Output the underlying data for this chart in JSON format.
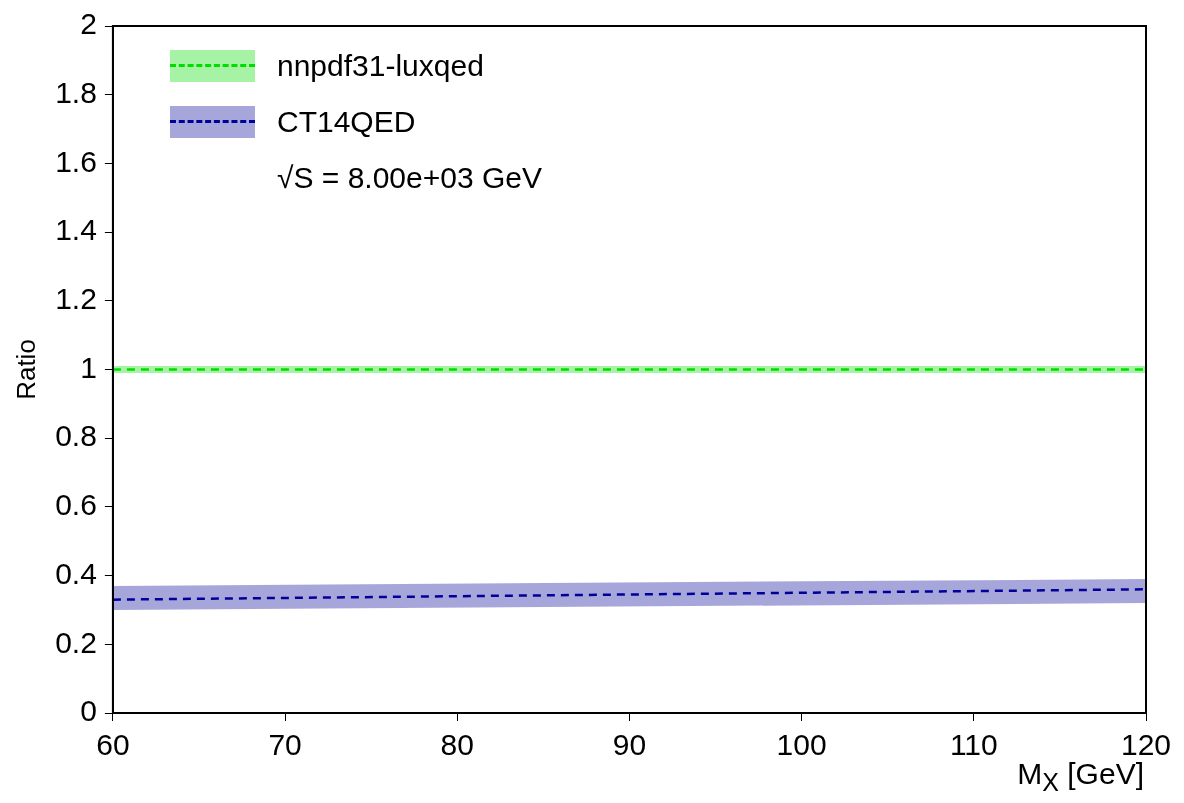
{
  "chart_data": {
    "type": "line",
    "xlabel": "M$_{X}$ [GeV]",
    "ylabel": "Ratio",
    "x": [
      60,
      120
    ],
    "xlim": [
      60,
      120
    ],
    "xticks": [
      60,
      70,
      80,
      90,
      100,
      110,
      120
    ],
    "ylim": [
      0,
      2
    ],
    "yticks": [
      0,
      0.2,
      0.4,
      0.6,
      0.8,
      1,
      1.2,
      1.4,
      1.6,
      1.8,
      2
    ],
    "series": [
      {
        "name": "nnpdf31-luxqed",
        "color": "#00dd00",
        "values": [
          1,
          1
        ],
        "lower": [
          0.99,
          0.99
        ],
        "upper": [
          1.01,
          1.01
        ]
      },
      {
        "name": "CT14QED",
        "color": "#000099",
        "values": [
          0.33,
          0.36
        ],
        "lower": [
          0.3,
          0.32
        ],
        "upper": [
          0.37,
          0.39
        ]
      }
    ],
    "line_style": "dashed",
    "legend": "top left",
    "grid": false,
    "marker": "none",
    "annotations": [
      "√S = 8.00e+03 GeV"
    ]
  }
}
